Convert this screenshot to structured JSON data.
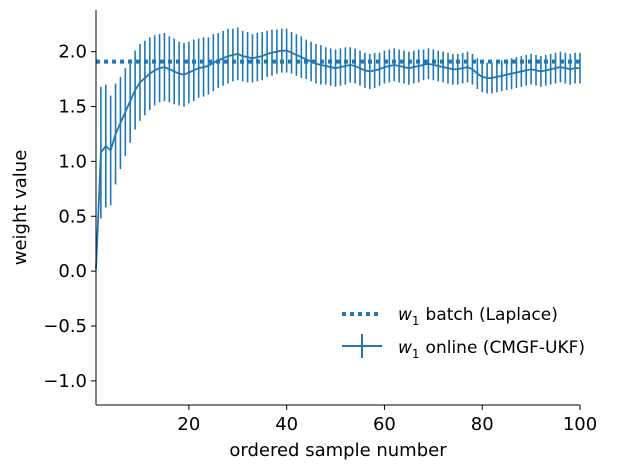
{
  "chart_data": {
    "type": "line",
    "xlabel": "ordered sample number",
    "ylabel": "weight value",
    "xlim": [
      1,
      100
    ],
    "ylim": [
      -1.22,
      2.38
    ],
    "x_ticks": [
      20,
      40,
      60,
      80,
      100
    ],
    "y_ticks": [
      -1.0,
      -0.5,
      0.0,
      0.5,
      1.0,
      1.5,
      2.0
    ],
    "y_tick_labels": [
      "−1.0",
      "−0.5",
      "0.0",
      "0.5",
      "1.0",
      "1.5",
      "2.0"
    ],
    "grid": false,
    "legend_position": "lower-right",
    "color": "#1f77b4",
    "series": [
      {
        "name": "batch (Laplace)",
        "legend_prefix": "w",
        "legend_sub": "1",
        "style": "dotted",
        "constant_value": 1.91
      },
      {
        "name": "online (CMGF-UKF)",
        "legend_prefix": "w",
        "legend_sub": "1",
        "style": "solid-errorbar",
        "x": [
          1,
          2,
          3,
          4,
          5,
          6,
          7,
          8,
          9,
          10,
          11,
          12,
          13,
          14,
          15,
          16,
          17,
          18,
          19,
          20,
          21,
          22,
          23,
          24,
          25,
          26,
          27,
          28,
          29,
          30,
          31,
          32,
          33,
          34,
          35,
          36,
          37,
          38,
          39,
          40,
          41,
          42,
          43,
          44,
          45,
          46,
          47,
          48,
          49,
          50,
          51,
          52,
          53,
          54,
          55,
          56,
          57,
          58,
          59,
          60,
          61,
          62,
          63,
          64,
          65,
          66,
          67,
          68,
          69,
          70,
          71,
          72,
          73,
          74,
          75,
          76,
          77,
          78,
          79,
          80,
          81,
          82,
          83,
          84,
          85,
          86,
          87,
          88,
          89,
          90,
          91,
          92,
          93,
          94,
          95,
          96,
          97,
          98,
          99,
          100
        ],
        "y": [
          0.02,
          1.08,
          1.14,
          1.1,
          1.25,
          1.35,
          1.45,
          1.55,
          1.65,
          1.72,
          1.76,
          1.8,
          1.83,
          1.85,
          1.86,
          1.84,
          1.82,
          1.8,
          1.79,
          1.81,
          1.83,
          1.85,
          1.86,
          1.87,
          1.9,
          1.92,
          1.94,
          1.96,
          1.97,
          1.98,
          1.96,
          1.95,
          1.94,
          1.95,
          1.96,
          1.98,
          1.99,
          2.0,
          2.01,
          2.01,
          1.99,
          1.97,
          1.95,
          1.93,
          1.91,
          1.89,
          1.88,
          1.87,
          1.86,
          1.85,
          1.86,
          1.87,
          1.88,
          1.87,
          1.85,
          1.83,
          1.82,
          1.83,
          1.84,
          1.86,
          1.87,
          1.88,
          1.87,
          1.86,
          1.85,
          1.86,
          1.87,
          1.88,
          1.89,
          1.88,
          1.87,
          1.86,
          1.85,
          1.84,
          1.84,
          1.85,
          1.86,
          1.84,
          1.8,
          1.77,
          1.76,
          1.76,
          1.77,
          1.78,
          1.79,
          1.8,
          1.81,
          1.82,
          1.83,
          1.84,
          1.83,
          1.82,
          1.83,
          1.84,
          1.85,
          1.86,
          1.85,
          1.84,
          1.85,
          1.85
        ],
        "err": [
          0.0,
          0.6,
          0.56,
          0.5,
          0.46,
          0.42,
          0.4,
          0.38,
          0.36,
          0.35,
          0.34,
          0.33,
          0.32,
          0.31,
          0.31,
          0.3,
          0.3,
          0.29,
          0.29,
          0.28,
          0.28,
          0.27,
          0.27,
          0.26,
          0.26,
          0.25,
          0.25,
          0.25,
          0.24,
          0.24,
          0.23,
          0.23,
          0.22,
          0.22,
          0.22,
          0.21,
          0.21,
          0.2,
          0.2,
          0.2,
          0.19,
          0.19,
          0.19,
          0.18,
          0.18,
          0.18,
          0.18,
          0.17,
          0.17,
          0.17,
          0.17,
          0.17,
          0.16,
          0.16,
          0.16,
          0.16,
          0.16,
          0.16,
          0.15,
          0.15,
          0.15,
          0.15,
          0.15,
          0.15,
          0.15,
          0.15,
          0.15,
          0.14,
          0.14,
          0.14,
          0.14,
          0.14,
          0.14,
          0.14,
          0.14,
          0.14,
          0.14,
          0.14,
          0.14,
          0.14,
          0.14,
          0.14,
          0.14,
          0.14,
          0.14,
          0.14,
          0.14,
          0.14,
          0.14,
          0.14,
          0.14,
          0.14,
          0.14,
          0.14,
          0.14,
          0.14,
          0.14,
          0.14,
          0.14,
          0.14
        ]
      }
    ]
  }
}
